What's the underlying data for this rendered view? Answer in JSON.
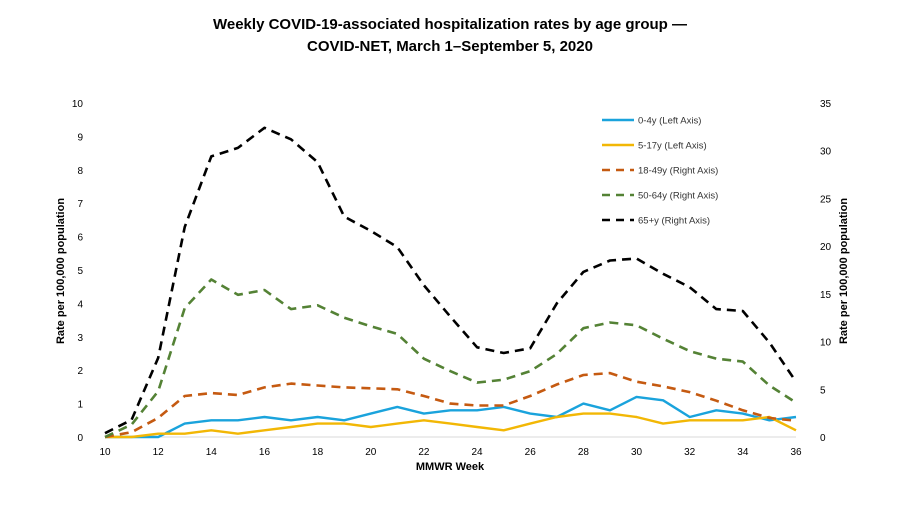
{
  "chart_data": {
    "type": "line",
    "title_line1": "Weekly COVID-19-associated hospitalization rates by age group —",
    "title_line2": "COVID-NET, March 1–September 5, 2020",
    "xlabel": "MMWR Week",
    "ylabel_left": "Rate per 100,000 population",
    "ylabel_right": "Rate per 100,000 population",
    "xlim": [
      10,
      36
    ],
    "ylim_left": [
      0,
      10
    ],
    "ylim_right": [
      0,
      35
    ],
    "x_ticks": [
      10,
      12,
      14,
      16,
      18,
      20,
      22,
      24,
      26,
      28,
      30,
      32,
      34,
      36
    ],
    "left_ticks": [
      0,
      1,
      2,
      3,
      4,
      5,
      6,
      7,
      8,
      9,
      10
    ],
    "right_ticks": [
      0,
      5,
      10,
      15,
      20,
      25,
      30,
      35
    ],
    "grid": false,
    "legend_position": "top-right",
    "x": [
      10,
      11,
      12,
      13,
      14,
      15,
      16,
      17,
      18,
      19,
      20,
      21,
      22,
      23,
      24,
      25,
      26,
      27,
      28,
      29,
      30,
      31,
      32,
      33,
      34,
      35,
      36
    ],
    "series": [
      {
        "name": "0-4y (Left Axis)",
        "axis": "left",
        "color": "#1aa3dc",
        "dash": "solid",
        "values": [
          0,
          0,
          0,
          0.4,
          0.5,
          0.5,
          0.6,
          0.5,
          0.6,
          0.5,
          0.7,
          0.9,
          0.7,
          0.8,
          0.8,
          0.9,
          0.7,
          0.6,
          1.0,
          0.8,
          1.2,
          1.1,
          0.6,
          0.8,
          0.7,
          0.5,
          0.6
        ]
      },
      {
        "name": "5-17y (Left Axis)",
        "axis": "left",
        "color": "#f2b705",
        "dash": "solid",
        "values": [
          0,
          0,
          0.1,
          0.1,
          0.2,
          0.1,
          0.2,
          0.3,
          0.4,
          0.4,
          0.3,
          0.4,
          0.5,
          0.4,
          0.3,
          0.2,
          0.4,
          0.6,
          0.7,
          0.7,
          0.6,
          0.4,
          0.5,
          0.5,
          0.5,
          0.6,
          0.2
        ]
      },
      {
        "name": "18-49y (Right Axis)",
        "axis": "right",
        "color": "#c55a11",
        "dash": "dashed",
        "values": [
          0,
          0.5,
          2.0,
          4.3,
          4.6,
          4.4,
          5.2,
          5.6,
          5.4,
          5.2,
          5.1,
          5.0,
          4.3,
          3.5,
          3.3,
          3.3,
          4.3,
          5.5,
          6.5,
          6.7,
          5.8,
          5.3,
          4.7,
          3.8,
          2.8,
          2.0,
          1.7
        ]
      },
      {
        "name": "50-64y (Right Axis)",
        "axis": "right",
        "color": "#548235",
        "dash": "dashed",
        "values": [
          0,
          1.3,
          4.8,
          13.5,
          16.5,
          14.9,
          15.4,
          13.4,
          13.8,
          12.5,
          11.6,
          10.8,
          8.2,
          6.9,
          5.7,
          6.0,
          6.9,
          8.7,
          11.4,
          12.0,
          11.7,
          10.3,
          9.0,
          8.2,
          7.9,
          5.4,
          3.6
        ]
      },
      {
        "name": "65+y (Right Axis)",
        "axis": "right",
        "color": "#000000",
        "dash": "dashed",
        "values": [
          0.4,
          1.8,
          8.3,
          22.0,
          29.4,
          30.3,
          32.4,
          31.2,
          28.8,
          23.1,
          21.6,
          19.9,
          15.9,
          12.6,
          9.4,
          8.8,
          9.3,
          14.0,
          17.3,
          18.5,
          18.7,
          17.1,
          15.7,
          13.4,
          13.2,
          9.9,
          5.8
        ]
      }
    ]
  }
}
